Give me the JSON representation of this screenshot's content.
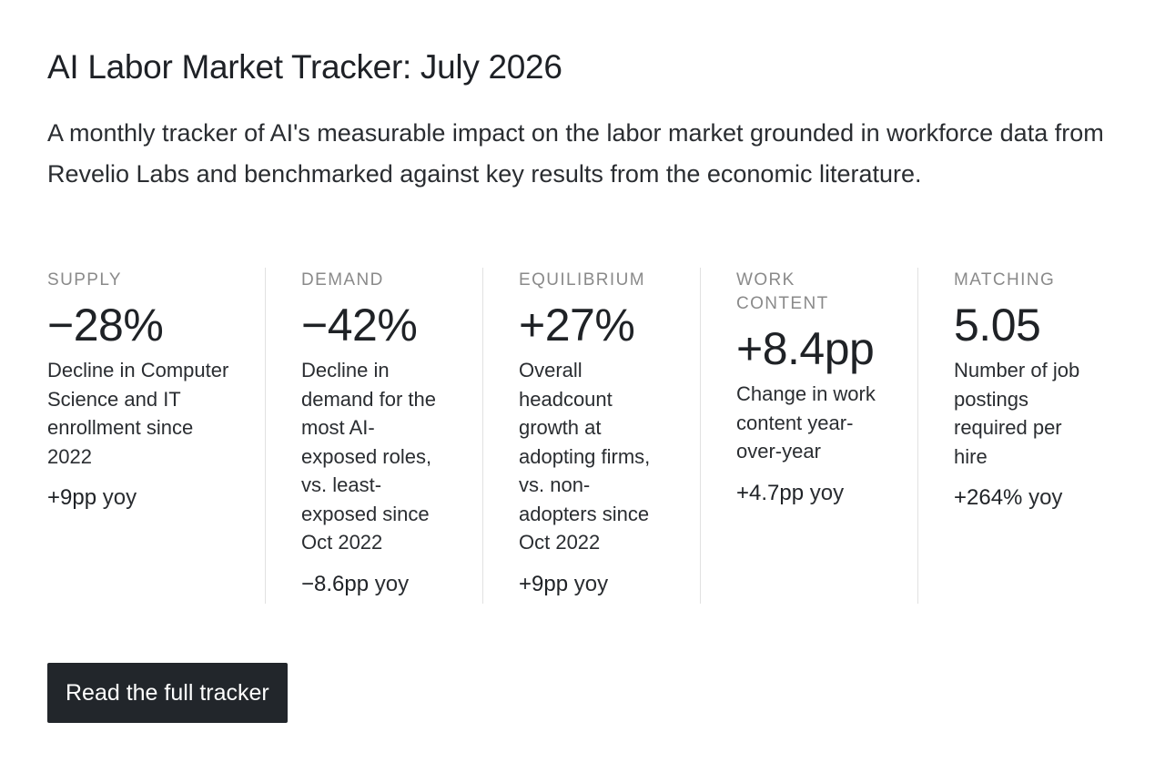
{
  "header": {
    "title": "AI Labor Market Tracker: July 2026",
    "subtitle": "A monthly tracker of AI's measurable impact on the labor market grounded in workforce data from Revelio Labs and benchmarked against key results from the economic literature."
  },
  "stats": [
    {
      "label": "SUPPLY",
      "value": "−28%",
      "description": "Decline in Computer Science and IT enrollment since 2022",
      "change_value": "+9pp",
      "change_unit": "yoy"
    },
    {
      "label": "DEMAND",
      "value": "−42%",
      "description": "Decline in demand for the most AI-exposed roles, vs. least-exposed since Oct 2022",
      "change_value": "−8.6pp",
      "change_unit": "yoy"
    },
    {
      "label": "EQUILIBRIUM",
      "value": "+27%",
      "description": "Overall headcount growth at adopting firms, vs. non-adopters since Oct 2022",
      "change_value": "+9pp",
      "change_unit": "yoy"
    },
    {
      "label": "WORK CONTENT",
      "value": "+8.4pp",
      "description": "Change in work content year-over-year",
      "change_value": "+4.7pp",
      "change_unit": "yoy"
    },
    {
      "label": "MATCHING",
      "value": "5.05",
      "description": "Number of job postings required per hire",
      "change_value": "+264%",
      "change_unit": "yoy"
    }
  ],
  "cta": {
    "label": "Read the full tracker"
  },
  "colors": {
    "text": "#1f2328",
    "muted_label": "#8a8a8a",
    "divider": "#e1e1e1",
    "button_bg": "#22262b",
    "button_text": "#ffffff"
  }
}
